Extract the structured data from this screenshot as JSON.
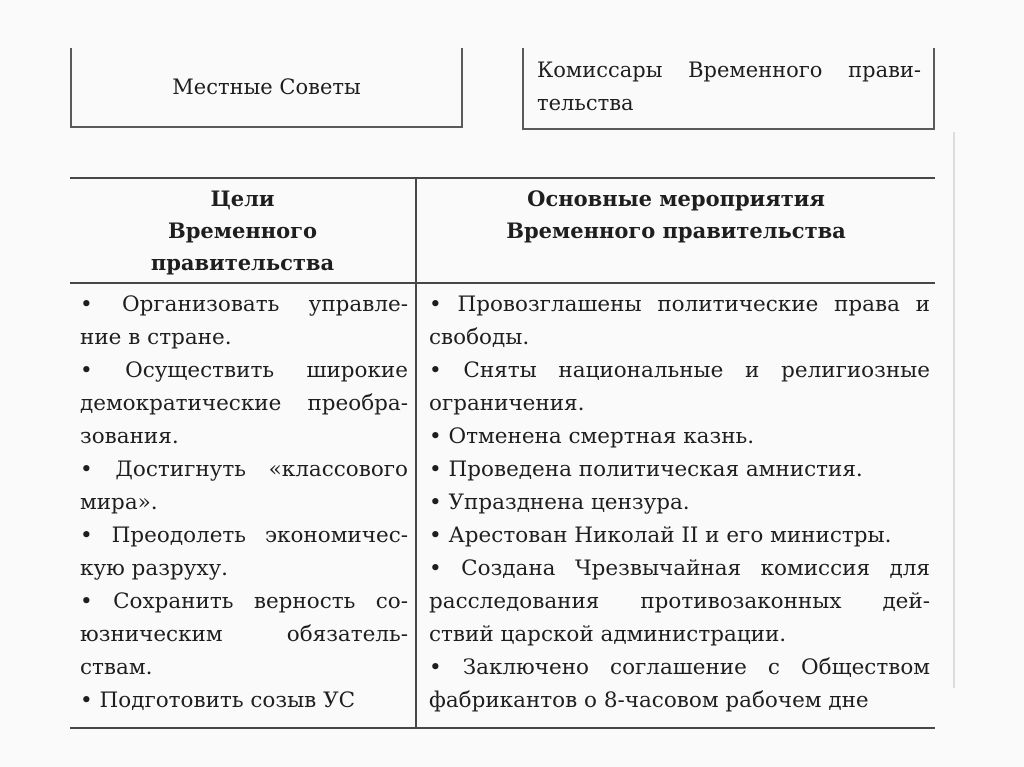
{
  "top_boxes": [
    {
      "title": "Местные Советы",
      "lines": [
        "Местные Советы"
      ]
    },
    {
      "title": "Комиссары Временного правительства",
      "lines": [
        "Комиссары Временного прави-",
        "тельства"
      ]
    }
  ],
  "table": {
    "headers": [
      {
        "title": "Цели Временного правительства",
        "lines": [
          "Цели",
          "Временного правительства"
        ]
      },
      {
        "title": "Основные мероприятия Временного правительства",
        "lines": [
          "Основные мероприятия",
          "Временного правительства"
        ]
      }
    ],
    "columns": [
      {
        "items": [
          {
            "lines": [
              "• Организовать управле-",
              "ние в стране."
            ]
          },
          {
            "lines": [
              "• Осуществить широкие",
              "демократические преобра-",
              "зования."
            ]
          },
          {
            "lines": [
              "• Достигнуть «классового",
              "мира»."
            ]
          },
          {
            "lines": [
              "• Преодолеть экономичес-",
              "кую разруху."
            ]
          },
          {
            "lines": [
              "• Сохранить верность со-",
              "юзническим обязатель-",
              "ствам."
            ]
          },
          {
            "lines": [
              "• Подготовить созыв УС"
            ]
          }
        ]
      },
      {
        "items": [
          {
            "lines": [
              "• Провозглашены политические права и",
              "свободы."
            ]
          },
          {
            "lines": [
              "• Сняты национальные и религиозные",
              "ограничения."
            ]
          },
          {
            "lines": [
              "• Отменена смертная казнь."
            ]
          },
          {
            "lines": [
              "• Проведена политическая амнистия."
            ]
          },
          {
            "lines": [
              "• Упразднена цензура."
            ]
          },
          {
            "lines": [
              "• Арестован Николай II и его министры."
            ]
          },
          {
            "lines": [
              "• Создана Чрезвычайная комиссия для",
              "расследования противозаконных дей-",
              "ствий царской администрации."
            ]
          },
          {
            "lines": [
              "• Заключено соглашение с Обществом",
              "фабрикантов о 8-часовом рабочем дне"
            ]
          }
        ]
      }
    ]
  },
  "colors": {
    "background": "#fafafa",
    "text": "#1e1e1e",
    "rule": "#474747",
    "box_border": "#5a5a5a",
    "edge_artifact": "#dcdcdc"
  }
}
